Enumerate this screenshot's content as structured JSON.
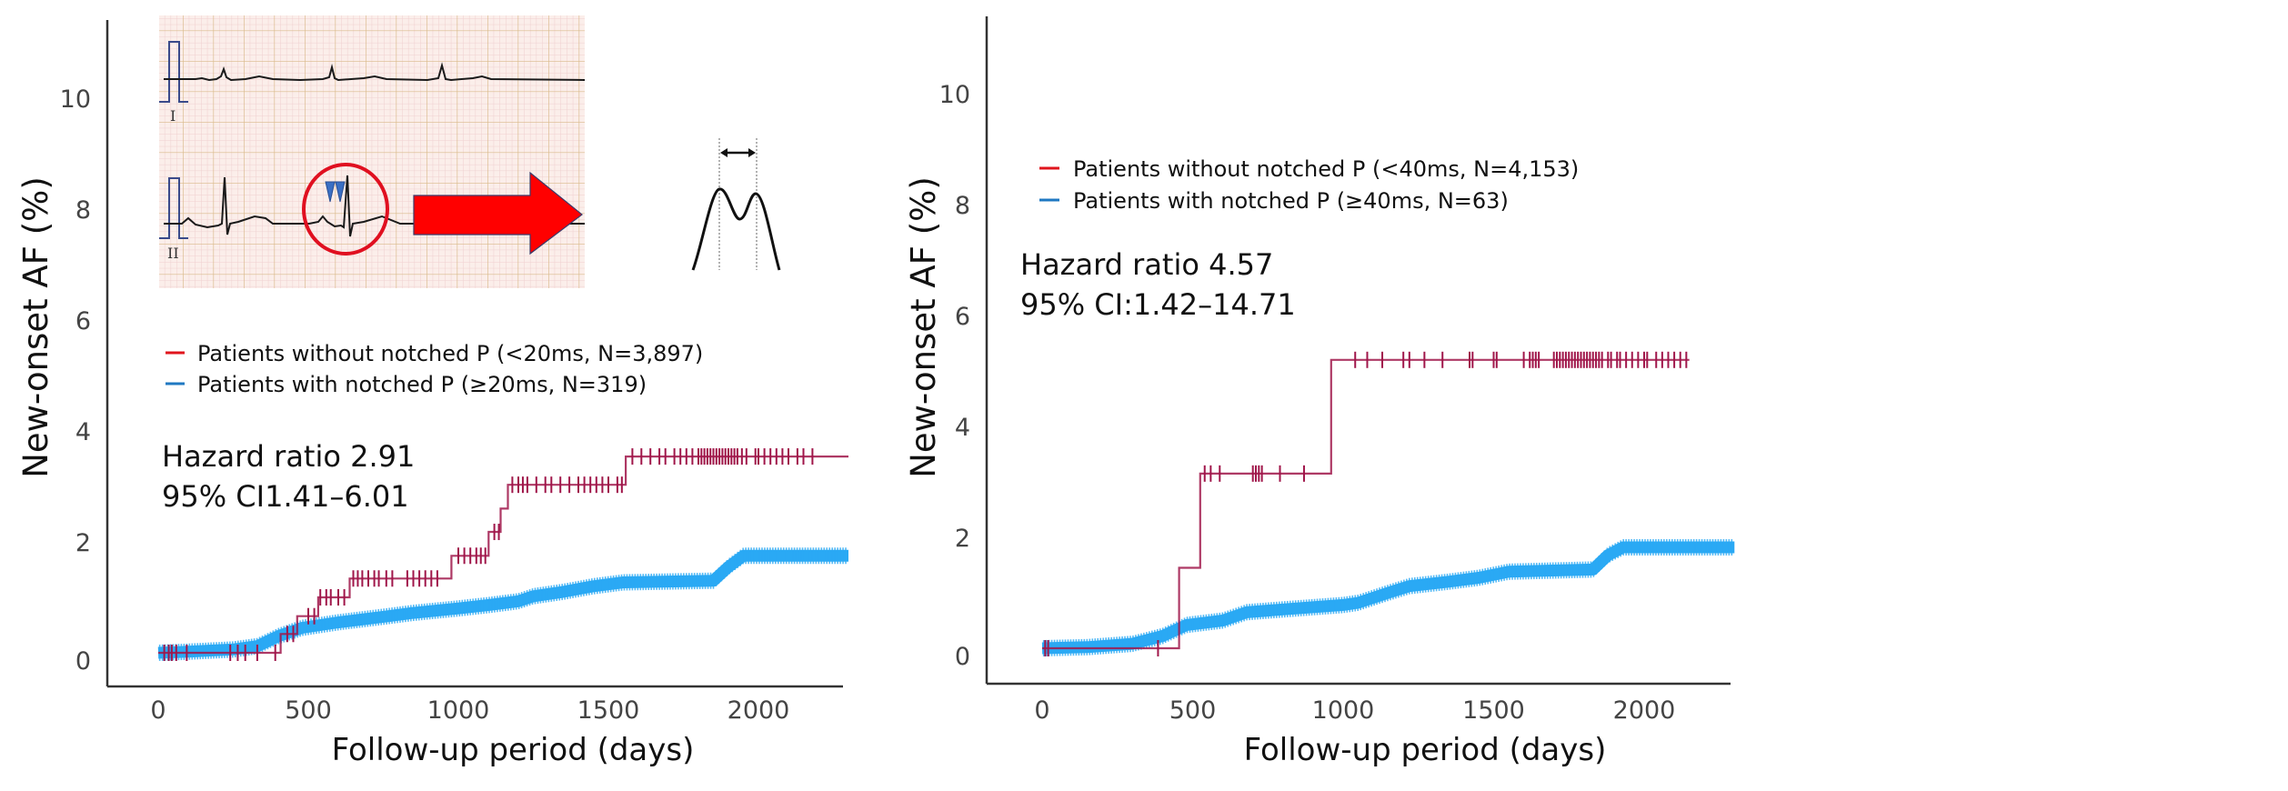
{
  "colors": {
    "red_series": "#a0164a",
    "blue_series": "#2aa9f4",
    "legend_red": "#e0141c",
    "legend_blue": "#1f78c2",
    "axis": "#333333",
    "ecg_grid_major": "#d9b98a",
    "ecg_grid_minor": "#efcfcf",
    "ecg_bg": "#fbeeea",
    "ecg_trace": "#1a1a1a",
    "ecg_highlight_circle": "#e01020",
    "ecg_arrow": "#ff0000",
    "notch_markers": "#3a6fc4"
  },
  "ecg_inset": {
    "lead_labels": [
      "I",
      "II"
    ],
    "annotation": "notched P wave (two blue markers) highlighted by red circle, red arrow points to notched P schematic"
  },
  "chart_data": [
    {
      "type": "line",
      "subtype": "kaplan-meier cumulative incidence (step)",
      "xlabel": "Follow-up period (days)",
      "ylabel": "New-onset AF (%)",
      "xlim": [
        0,
        2300
      ],
      "ylim": [
        0,
        11
      ],
      "xticks": [
        0,
        500,
        1000,
        1500,
        2000
      ],
      "yticks": [
        0,
        2,
        4,
        6,
        8,
        10
      ],
      "xtick_labels": [
        "0",
        "500",
        "1000",
        "1500",
        "2000"
      ],
      "ytick_labels": [
        "0",
        "2",
        "4",
        "6",
        "8",
        "10"
      ],
      "grid": false,
      "legend_position": "middle-left",
      "annotation_lines": [
        "Hazard ratio 2.91",
        "95% CI1.41–6.01"
      ],
      "series": [
        {
          "name": "Patients without notched P (<20ms, N=3,897)",
          "legend_label": "Patients without notched P (<20ms, N=3,897)",
          "color_key": "red_series",
          "steps": [
            [
              0,
              0
            ],
            [
              408,
              0.34
            ],
            [
              463,
              0.66
            ],
            [
              533,
              1.0
            ],
            [
              638,
              1.34
            ],
            [
              977,
              1.75
            ],
            [
              1101,
              2.18
            ],
            [
              1141,
              2.6
            ],
            [
              1165,
              3.03
            ],
            [
              1558,
              3.54
            ]
          ],
          "end_x": 2300,
          "censor_x": [
            20,
            35,
            45,
            60,
            95,
            240,
            265,
            290,
            330,
            390,
            430,
            450,
            500,
            520,
            540,
            560,
            575,
            600,
            620,
            650,
            665,
            680,
            700,
            720,
            735,
            760,
            780,
            830,
            850,
            870,
            890,
            910,
            930,
            1000,
            1020,
            1040,
            1060,
            1075,
            1090,
            1120,
            1135,
            1180,
            1200,
            1215,
            1230,
            1260,
            1290,
            1310,
            1340,
            1370,
            1400,
            1420,
            1440,
            1460,
            1480,
            1500,
            1530,
            1545,
            1580,
            1610,
            1640,
            1670,
            1690,
            1720,
            1740,
            1760,
            1780,
            1800,
            1810,
            1820,
            1830,
            1840,
            1850,
            1860,
            1870,
            1880,
            1890,
            1900,
            1910,
            1920,
            1930,
            1945,
            1960,
            1990,
            2000,
            2020,
            2040,
            2060,
            2080,
            2100,
            2130,
            2150,
            2180
          ]
        },
        {
          "name": "Patients with notched P (≥20ms, N=319)",
          "legend_label": "Patients with notched P (≥20ms, N=319)",
          "color_key": "blue_series",
          "curve": [
            [
              0,
              0
            ],
            [
              100,
              0.02
            ],
            [
              250,
              0.06
            ],
            [
              330,
              0.12
            ],
            [
              400,
              0.3
            ],
            [
              480,
              0.45
            ],
            [
              600,
              0.55
            ],
            [
              750,
              0.65
            ],
            [
              850,
              0.72
            ],
            [
              1000,
              0.8
            ],
            [
              1100,
              0.86
            ],
            [
              1200,
              0.93
            ],
            [
              1250,
              1.02
            ],
            [
              1350,
              1.1
            ],
            [
              1450,
              1.2
            ],
            [
              1550,
              1.27
            ],
            [
              1850,
              1.3
            ],
            [
              1900,
              1.55
            ],
            [
              1950,
              1.75
            ],
            [
              2300,
              1.75
            ]
          ]
        }
      ]
    },
    {
      "type": "line",
      "subtype": "kaplan-meier cumulative incidence (step)",
      "xlabel": "Follow-up period (days)",
      "ylabel": "New-onset AF (%)",
      "xlim": [
        0,
        2300
      ],
      "ylim": [
        0,
        11
      ],
      "xticks": [
        0,
        500,
        1000,
        1500,
        2000
      ],
      "yticks": [
        0,
        2,
        4,
        6,
        8,
        10
      ],
      "xtick_labels": [
        "0",
        "500",
        "1000",
        "1500",
        "2000"
      ],
      "ytick_labels": [
        "0",
        "2",
        "4",
        "6",
        "8",
        "10"
      ],
      "grid": false,
      "legend_position": "upper-left",
      "annotation_lines": [
        "Hazard ratio 4.57",
        "95% CI:1.42–14.71"
      ],
      "series": [
        {
          "name": "Patients without notched P (<40ms, N=4,153)",
          "legend_label": "Patients without notched P (<40ms, N=4,153)",
          "color_key": "red_series",
          "steps": [
            [
              0,
              0
            ],
            [
              455,
              1.45
            ],
            [
              525,
              3.15
            ],
            [
              960,
              5.2
            ]
          ],
          "end_x": 2150,
          "censor_x": [
            10,
            20,
            385,
            540,
            560,
            590,
            700,
            710,
            720,
            730,
            790,
            870,
            1040,
            1080,
            1130,
            1200,
            1220,
            1270,
            1330,
            1420,
            1430,
            1500,
            1510,
            1600,
            1620,
            1630,
            1640,
            1650,
            1700,
            1710,
            1720,
            1730,
            1740,
            1750,
            1760,
            1770,
            1780,
            1790,
            1800,
            1810,
            1820,
            1830,
            1840,
            1850,
            1860,
            1880,
            1890,
            1910,
            1920,
            1940,
            1960,
            1980,
            2000,
            2010,
            2040,
            2060,
            2080,
            2100,
            2120,
            2140
          ]
        },
        {
          "name": "Patients with notched P (≥40ms, N=63)",
          "legend_label": "Patients with notched P (≥40ms, N=63)",
          "color_key": "blue_series",
          "curve": [
            [
              0,
              0
            ],
            [
              150,
              0.02
            ],
            [
              300,
              0.08
            ],
            [
              400,
              0.22
            ],
            [
              480,
              0.42
            ],
            [
              600,
              0.5
            ],
            [
              680,
              0.65
            ],
            [
              800,
              0.7
            ],
            [
              1000,
              0.78
            ],
            [
              1050,
              0.82
            ],
            [
              1150,
              1.0
            ],
            [
              1220,
              1.12
            ],
            [
              1350,
              1.2
            ],
            [
              1450,
              1.27
            ],
            [
              1550,
              1.38
            ],
            [
              1830,
              1.42
            ],
            [
              1880,
              1.68
            ],
            [
              1930,
              1.82
            ],
            [
              2300,
              1.82
            ]
          ]
        }
      ]
    }
  ]
}
